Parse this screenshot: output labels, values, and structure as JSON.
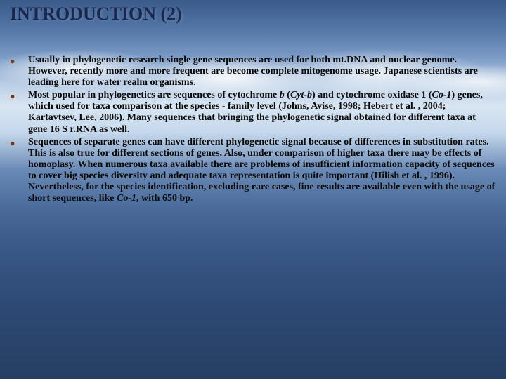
{
  "title": {
    "text": "INTRODUCTION (2)",
    "fontsize": 26,
    "color": "#1a2850"
  },
  "bullets": {
    "marker_color": "#7a3818",
    "text_color": "#0a0a0a",
    "text_fontsize": 14,
    "items": [
      {
        "pre": "Usually in phylogenetic research single gene sequences are used for both mt.DNA and nuclear genome. However, recently more and more frequent are become complete mitogenome usage. Japanese scientists are leading here for water realm organisms."
      },
      {
        "pre": "Most popular in phylogenetics are sequences of cytochrome ",
        "i1": "b",
        "mid1": " (",
        "i2": "Cyt-b",
        "mid2": ") and cytochrome oxidase 1 (",
        "i3": "Co-1",
        "post": ") genes, which used for taxa comparison at the species - family level (Johns, Avise, 1998; Hebert et al. , 2004; Kartavtsev, Lee, 2006). Many sequences that bringing the phylogenetic signal obtained for different taxa at gene 16 S r.RNA as well."
      },
      {
        "pre": "Sequences of separate genes can have different phylogenetic signal because of differences in substitution rates. This is also true for different sections of genes. Also, under comparison of higher taxa there may be effects of homoplasy. When numerous taxa available there are problems of insufficient information capacity of sequences to cover big species diversity and adequate taxa representation is quite important (Hilish et al. , 1996). Nevertheless, for the species identification, excluding rare cases, fine results are available even with the usage of short sequences, like ",
        "i1": "Co-1",
        "post": ", with 650 bp."
      }
    ]
  },
  "background": {
    "type": "gradient-sky-ocean",
    "colors": [
      "#3a5a8a",
      "#7a9ac5",
      "#d8e5f2",
      "#4a6a9a",
      "#263e62"
    ]
  }
}
